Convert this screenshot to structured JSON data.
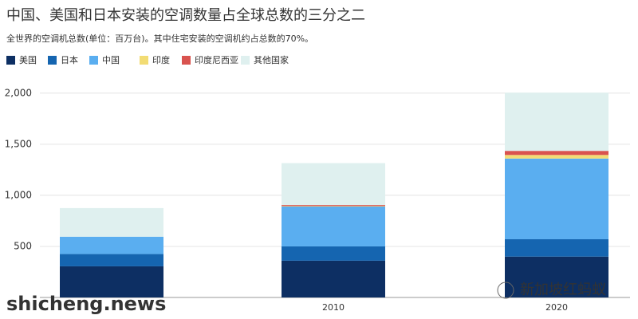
{
  "chart_data": {
    "type": "stacked_bar",
    "title": "中国、美国和日本安装的空调数量占全球总数的三分之二",
    "subtitle": "全世界的空调机总数(单位：百万台)。其中住宅安装的空调机约占总数的70%。",
    "categories": [
      null,
      "2010",
      "2020"
    ],
    "series": [
      {
        "name": "美国",
        "color": "#0d2f63",
        "values": [
          305,
          360,
          400
        ]
      },
      {
        "name": "日本",
        "color": "#1565b0",
        "values": [
          120,
          140,
          170
        ]
      },
      {
        "name": "中国",
        "color": "#5aaef0",
        "values": [
          170,
          390,
          790
        ]
      },
      {
        "name": "印度",
        "color": "#f2dc74",
        "values": [
          0,
          5,
          35
        ]
      },
      {
        "name": "印度尼西亚",
        "color": "#d9534f",
        "values": [
          0,
          10,
          40
        ]
      },
      {
        "name": "其他国家",
        "color": "#dff0ef",
        "values": [
          280,
          410,
          570
        ]
      }
    ],
    "ylim": [
      0,
      2100
    ],
    "yticks": [
      {
        "value": 500,
        "label": "500"
      },
      {
        "value": 1000,
        "label": "1,000"
      },
      {
        "value": 1500,
        "label": "1,500"
      },
      {
        "value": 2000,
        "label": "2,000"
      }
    ],
    "grid": true,
    "watermarks": [
      "shicheng.news",
      "新加坡红蚂蚁"
    ]
  }
}
